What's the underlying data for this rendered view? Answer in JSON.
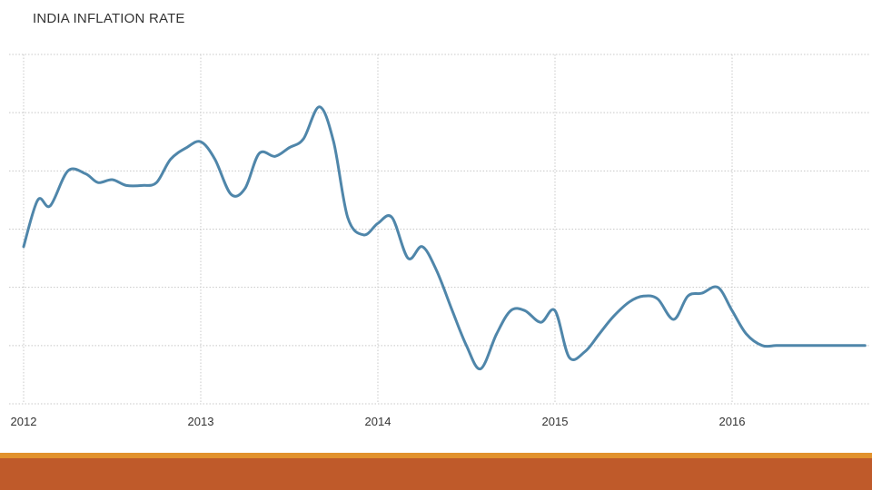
{
  "colors": {
    "series": "#4f86aa",
    "grid": "#c8c8c8",
    "footer_top": "#e2922d",
    "footer_main": "#bf5a2a"
  },
  "chart_data": {
    "type": "line",
    "title": "INDIA INFLATION RATE",
    "xlabel": "",
    "ylabel": "",
    "x_ticks": [
      "2012",
      "2013",
      "2014",
      "2015",
      "2016"
    ],
    "x_tick_values": [
      2012,
      2013,
      2014,
      2015,
      2016
    ],
    "xlim": [
      2012,
      2016.7
    ],
    "ylim": [
      0,
      6
    ],
    "y_tick_labels_visible": false,
    "grid": true,
    "legend": "none",
    "series": [
      {
        "x": [
          2012.0,
          2012.08,
          2012.15,
          2012.25,
          2012.35,
          2012.42,
          2012.5,
          2012.58,
          2012.67,
          2012.75,
          2012.83,
          2012.92,
          2013.0,
          2013.08,
          2013.17,
          2013.25,
          2013.33,
          2013.42,
          2013.5,
          2013.58,
          2013.67,
          2013.75,
          2013.83,
          2013.92,
          2014.0,
          2014.08,
          2014.17,
          2014.25,
          2014.33,
          2014.42,
          2014.5,
          2014.58,
          2014.67,
          2014.75,
          2014.83,
          2014.92,
          2015.0,
          2015.08,
          2015.17,
          2015.25,
          2015.33,
          2015.42,
          2015.5,
          2015.58,
          2015.67,
          2015.75,
          2015.83,
          2015.92,
          2016.0,
          2016.08,
          2016.17,
          2016.25,
          2016.33,
          2016.42,
          2016.5,
          2016.58,
          2016.67,
          2016.75
        ],
        "values": [
          2.7,
          3.5,
          3.4,
          4.0,
          3.95,
          3.8,
          3.85,
          3.75,
          3.75,
          3.8,
          4.2,
          4.4,
          4.5,
          4.2,
          3.6,
          3.7,
          4.3,
          4.25,
          4.4,
          4.55,
          5.1,
          4.5,
          3.2,
          2.9,
          3.1,
          3.2,
          2.5,
          2.7,
          2.3,
          1.6,
          1.0,
          0.6,
          1.2,
          1.6,
          1.6,
          1.4,
          1.6,
          0.8,
          0.9,
          1.2,
          1.5,
          1.75,
          1.85,
          1.8,
          1.45,
          1.85,
          1.9,
          2.0,
          1.6,
          1.2,
          1.0,
          1.0,
          1.0,
          1.0,
          1.0,
          1.0,
          1.0,
          1.0
        ]
      }
    ]
  }
}
